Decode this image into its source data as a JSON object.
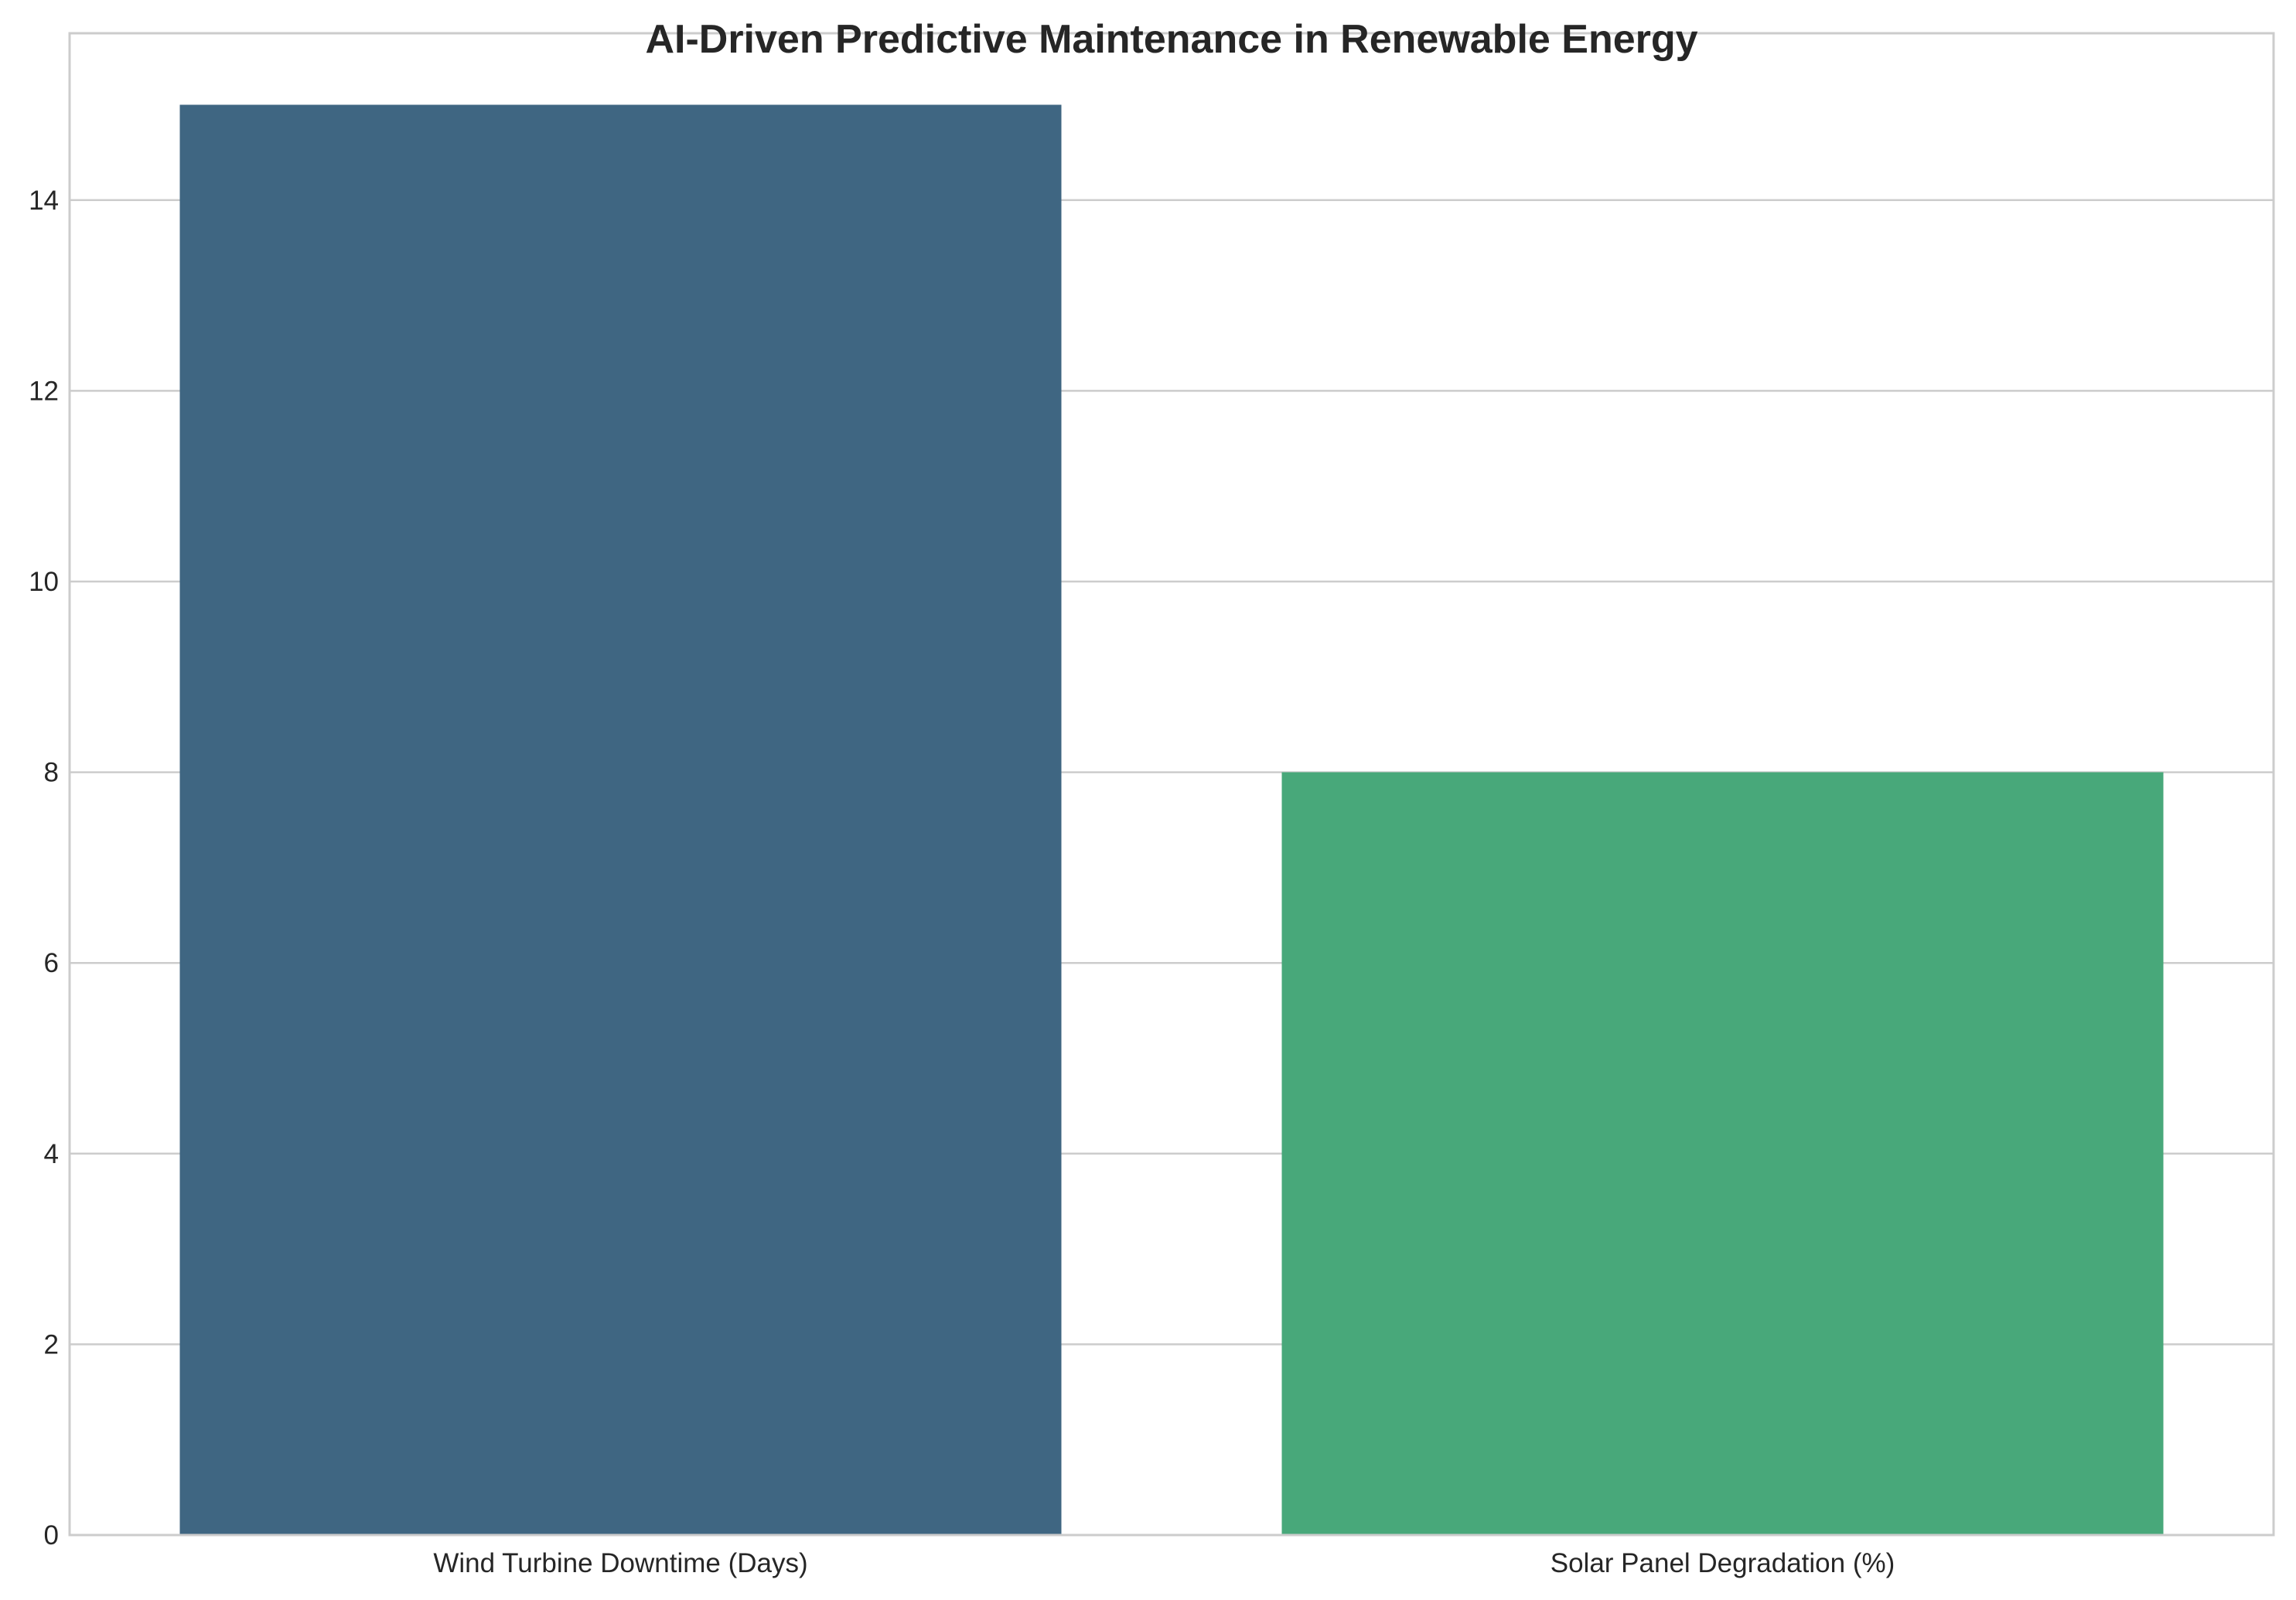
{
  "chart_data": {
    "type": "bar",
    "title": "AI-Driven Predictive Maintenance in Renewable Energy",
    "xlabel": "",
    "ylabel": "",
    "categories": [
      "Wind Turbine Downtime (Days)",
      "Solar Panel Degradation (%)"
    ],
    "values": [
      15,
      8
    ],
    "colors": [
      "#3f6682",
      "#48a87a"
    ],
    "ylim": [
      0,
      15.75
    ],
    "yticks": [
      0,
      2,
      4,
      6,
      8,
      10,
      12,
      14
    ],
    "ytick_labels": [
      "0",
      "2",
      "4",
      "6",
      "8",
      "10",
      "12",
      "14"
    ],
    "grid": "horizontal",
    "frame_color": "#cccccc",
    "legend": "none"
  }
}
